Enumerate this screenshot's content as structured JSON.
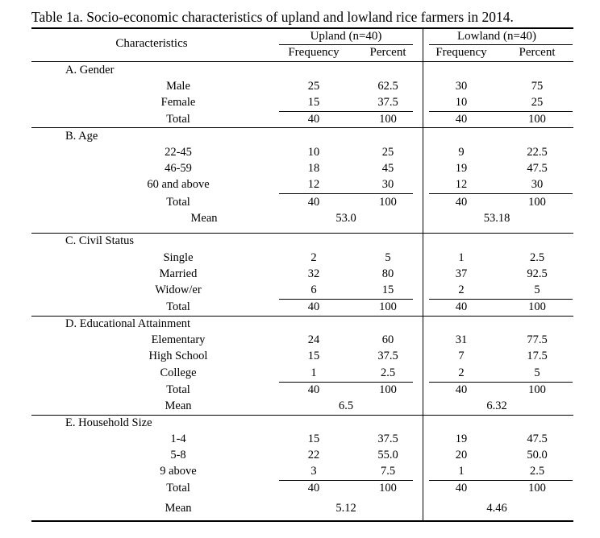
{
  "caption": "Table 1a.  Socio-economic characteristics of upland and lowland rice farmers in 2014.",
  "header": {
    "characteristics": "Characteristics",
    "upland": "Upland (n=40)",
    "lowland": "Lowland (n=40)",
    "frequency": "Frequency",
    "percent": "Percent"
  },
  "sections": {
    "gender": {
      "title": "A.  Gender",
      "rows": [
        {
          "label": "Male",
          "uf": "25",
          "up": "62.5",
          "lf": "30",
          "lp": "75"
        },
        {
          "label": "Female",
          "uf": "15",
          "up": "37.5",
          "lf": "10",
          "lp": "25"
        },
        {
          "label": "Total",
          "uf": "40",
          "up": "100",
          "lf": "40",
          "lp": "100"
        }
      ]
    },
    "age": {
      "title": "B.  Age",
      "rows": [
        {
          "label": "22-45",
          "uf": "10",
          "up": "25",
          "lf": "9",
          "lp": "22.5"
        },
        {
          "label": "46-59",
          "uf": "18",
          "up": "45",
          "lf": "19",
          "lp": "47.5"
        },
        {
          "label": "60 and above",
          "uf": "12",
          "up": "30",
          "lf": "12",
          "lp": "30"
        },
        {
          "label": "Total",
          "uf": "40",
          "up": "100",
          "lf": "40",
          "lp": "100"
        }
      ],
      "mean": {
        "label": "Mean",
        "upland": "53.0",
        "lowland": "53.18"
      }
    },
    "civil": {
      "title": "C.  Civil Status",
      "rows": [
        {
          "label": "Single",
          "uf": "2",
          "up": "5",
          "lf": "1",
          "lp": "2.5"
        },
        {
          "label": "Married",
          "uf": "32",
          "up": "80",
          "lf": "37",
          "lp": "92.5"
        },
        {
          "label": "Widow/er",
          "uf": "6",
          "up": "15",
          "lf": "2",
          "lp": "5"
        },
        {
          "label": "Total",
          "uf": "40",
          "up": "100",
          "lf": "40",
          "lp": "100"
        }
      ]
    },
    "education": {
      "title": "D.  Educational Attainment",
      "rows": [
        {
          "label": "Elementary",
          "uf": "24",
          "up": "60",
          "lf": "31",
          "lp": "77.5"
        },
        {
          "label": "High School",
          "uf": "15",
          "up": "37.5",
          "lf": "7",
          "lp": "17.5"
        },
        {
          "label": "College",
          "uf": "1",
          "up": "2.5",
          "lf": "2",
          "lp": "5"
        },
        {
          "label": "Total",
          "uf": "40",
          "up": "100",
          "lf": "40",
          "lp": "100"
        }
      ],
      "mean": {
        "label": "Mean",
        "upland": "6.5",
        "lowland": "6.32"
      }
    },
    "household": {
      "title": "E.  Household Size",
      "rows": [
        {
          "label": "1-4",
          "uf": "15",
          "up": "37.5",
          "lf": "19",
          "lp": "47.5"
        },
        {
          "label": "5-8",
          "uf": "22",
          "up": "55.0",
          "lf": "20",
          "lp": "50.0"
        },
        {
          "label": "9 above",
          "uf": "3",
          "up": "7.5",
          "lf": "1",
          "lp": "2.5"
        },
        {
          "label": "Total",
          "uf": "40",
          "up": "100",
          "lf": "40",
          "lp": "100"
        }
      ],
      "mean": {
        "label": "Mean",
        "upland": "5.12",
        "lowland": "4.46"
      }
    }
  }
}
